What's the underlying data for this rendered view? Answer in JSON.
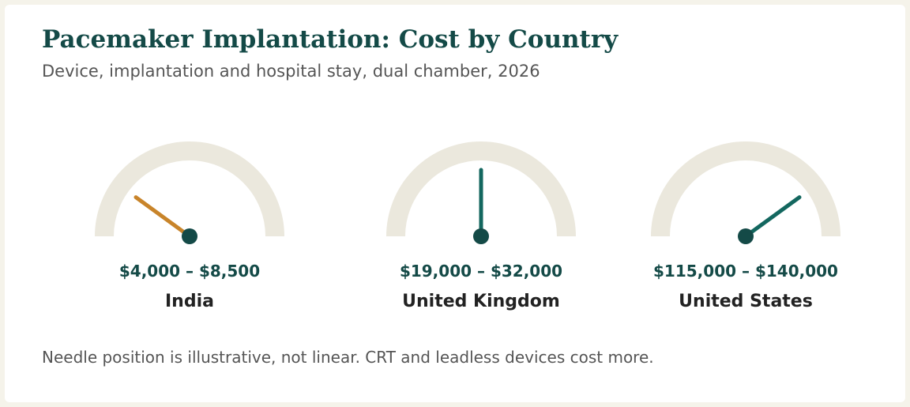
{
  "title": "Pacemaker Implantation: Cost by Country",
  "subtitle": "Device, implantation and hospital stay, dual chamber, 2026",
  "footnote": "Needle position is illustrative, not linear. CRT and leadless devices cost more.",
  "colors": {
    "track": "#ebe8dd",
    "hub": "#144a47",
    "needle_low": "#c8842a",
    "needle_default": "#13675f",
    "range_text": "#144a47",
    "country_text": "#222222"
  },
  "chart_data": {
    "type": "gauge",
    "title": "Pacemaker Implantation: Cost by Country",
    "subtitle": "Device, implantation and hospital stay, dual chamber, 2026",
    "gauges": [
      {
        "country": "India",
        "range_label": "$4,000 – $8,500",
        "min": 4000,
        "max": 8500,
        "needle_level": 0.2,
        "needle_color": "#c8842a"
      },
      {
        "country": "United Kingdom",
        "range_label": "$19,000 – $32,000",
        "min": 19000,
        "max": 32000,
        "needle_level": 0.5,
        "needle_color": "#13675f"
      },
      {
        "country": "United States",
        "range_label": "$115,000 – $140,000",
        "min": 115000,
        "max": 140000,
        "needle_level": 0.8,
        "needle_color": "#13675f"
      }
    ]
  }
}
